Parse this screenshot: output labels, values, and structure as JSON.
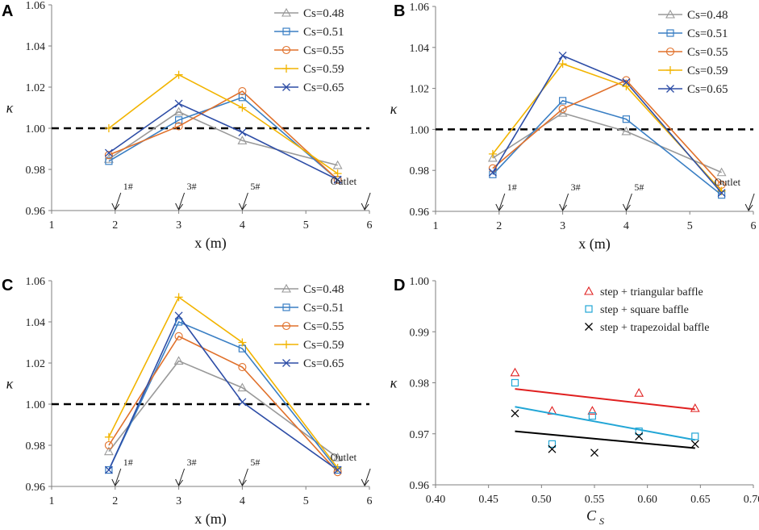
{
  "chart_data": [
    {
      "panel": "A",
      "type": "line",
      "xlabel": "x (m)",
      "ylabel": "κ",
      "xlim": [
        1,
        6
      ],
      "ylim": [
        0.96,
        1.06
      ],
      "xticks": [
        "1",
        "2",
        "3",
        "4",
        "5",
        "6"
      ],
      "yticks": [
        "0.96",
        "0.98",
        "1.00",
        "1.02",
        "1.04",
        "1.06"
      ],
      "reference_line": 1.0,
      "legend_position": "top-right",
      "x": [
        1.9,
        3.0,
        4.0,
        5.5
      ],
      "series": [
        {
          "name": "Cs=0.48",
          "marker": "triangle",
          "color": "#999999",
          "values": [
            0.985,
            1.008,
            0.994,
            0.982
          ]
        },
        {
          "name": "Cs=0.51",
          "marker": "square",
          "color": "#3a7fc4",
          "values": [
            0.984,
            1.004,
            1.015,
            0.975
          ]
        },
        {
          "name": "Cs=0.55",
          "marker": "circle",
          "color": "#e0702a",
          "values": [
            0.987,
            1.001,
            1.018,
            0.975
          ]
        },
        {
          "name": "Cs=0.59",
          "marker": "plus",
          "color": "#f2b400",
          "values": [
            1.0,
            1.026,
            1.01,
            0.978
          ]
        },
        {
          "name": "Cs=0.65",
          "marker": "x",
          "color": "#2d4da6",
          "values": [
            0.988,
            1.012,
            0.998,
            0.975
          ]
        }
      ],
      "annotations": [
        {
          "text": "1#",
          "x": 2
        },
        {
          "text": "3#",
          "x": 3
        },
        {
          "text": "5#",
          "x": 4
        },
        {
          "text": "Outlet",
          "x": 5.9
        }
      ]
    },
    {
      "panel": "B",
      "type": "line",
      "xlabel": "x (m)",
      "ylabel": "κ",
      "xlim": [
        1,
        6
      ],
      "ylim": [
        0.96,
        1.06
      ],
      "xticks": [
        "1",
        "2",
        "3",
        "4",
        "5",
        "6"
      ],
      "yticks": [
        "0.96",
        "0.98",
        "1.00",
        "1.02",
        "1.04",
        "1.06"
      ],
      "reference_line": 1.0,
      "legend_position": "top-right",
      "x": [
        1.9,
        3.0,
        4.0,
        5.5
      ],
      "series": [
        {
          "name": "Cs=0.48",
          "marker": "triangle",
          "color": "#999999",
          "values": [
            0.986,
            1.008,
            0.999,
            0.979
          ]
        },
        {
          "name": "Cs=0.51",
          "marker": "square",
          "color": "#3a7fc4",
          "values": [
            0.978,
            1.014,
            1.005,
            0.968
          ]
        },
        {
          "name": "Cs=0.55",
          "marker": "circle",
          "color": "#e0702a",
          "values": [
            0.981,
            1.01,
            1.024,
            0.973
          ]
        },
        {
          "name": "Cs=0.59",
          "marker": "plus",
          "color": "#f2b400",
          "values": [
            0.988,
            1.032,
            1.021,
            0.97
          ]
        },
        {
          "name": "Cs=0.65",
          "marker": "x",
          "color": "#2d4da6",
          "values": [
            0.979,
            1.036,
            1.023,
            0.969
          ]
        }
      ],
      "annotations": [
        {
          "text": "1#",
          "x": 2
        },
        {
          "text": "3#",
          "x": 3
        },
        {
          "text": "5#",
          "x": 4
        },
        {
          "text": "Outlet",
          "x": 5.9
        }
      ]
    },
    {
      "panel": "C",
      "type": "line",
      "xlabel": "x (m)",
      "ylabel": "κ",
      "xlim": [
        1,
        6
      ],
      "ylim": [
        0.96,
        1.06
      ],
      "xticks": [
        "1",
        "2",
        "3",
        "4",
        "5",
        "6"
      ],
      "yticks": [
        "0.96",
        "0.98",
        "1.00",
        "1.02",
        "1.04",
        "1.06"
      ],
      "reference_line": 1.0,
      "legend_position": "top-right",
      "x": [
        1.9,
        3.0,
        4.0,
        5.5
      ],
      "series": [
        {
          "name": "Cs=0.48",
          "marker": "triangle",
          "color": "#999999",
          "values": [
            0.977,
            1.021,
            1.008,
            0.974
          ]
        },
        {
          "name": "Cs=0.51",
          "marker": "square",
          "color": "#3a7fc4",
          "values": [
            0.968,
            1.04,
            1.027,
            0.968
          ]
        },
        {
          "name": "Cs=0.55",
          "marker": "circle",
          "color": "#e0702a",
          "values": [
            0.98,
            1.033,
            1.018,
            0.967
          ]
        },
        {
          "name": "Cs=0.59",
          "marker": "plus",
          "color": "#f2b400",
          "values": [
            0.984,
            1.052,
            1.03,
            0.969
          ]
        },
        {
          "name": "Cs=0.65",
          "marker": "x",
          "color": "#2d4da6",
          "values": [
            0.968,
            1.043,
            1.001,
            0.968
          ]
        }
      ],
      "annotations": [
        {
          "text": "1#",
          "x": 2
        },
        {
          "text": "3#",
          "x": 3
        },
        {
          "text": "5#",
          "x": 4
        },
        {
          "text": "Outlet",
          "x": 5.9
        }
      ]
    },
    {
      "panel": "D",
      "type": "scatter",
      "xlabel": "CS",
      "xlabel_main": "C",
      "xlabel_sub": "S",
      "ylabel": "κ",
      "xlim": [
        0.4,
        0.7
      ],
      "ylim": [
        0.96,
        1.0
      ],
      "xticks": [
        "0.40",
        "0.45",
        "0.50",
        "0.55",
        "0.60",
        "0.65",
        "0.70"
      ],
      "yticks": [
        "0.96",
        "0.97",
        "0.98",
        "0.99",
        "1.00"
      ],
      "legend_position": "top-right",
      "series": [
        {
          "name": "step + triangular baffle",
          "marker": "triangle",
          "color": "#e02020",
          "x": [
            0.475,
            0.51,
            0.548,
            0.592,
            0.645
          ],
          "values": [
            0.982,
            0.9745,
            0.9745,
            0.978,
            0.975
          ],
          "fit": {
            "x": [
              0.475,
              0.645
            ],
            "y": [
              0.9788,
              0.9748
            ]
          }
        },
        {
          "name": "step + square baffle",
          "marker": "square",
          "color": "#22a6d6",
          "x": [
            0.475,
            0.51,
            0.548,
            0.592,
            0.645
          ],
          "values": [
            0.98,
            0.968,
            0.9735,
            0.9705,
            0.9695
          ],
          "fit": {
            "x": [
              0.475,
              0.645
            ],
            "y": [
              0.9753,
              0.9688
            ]
          }
        },
        {
          "name": "step + trapezoidal baffle",
          "marker": "x",
          "color": "#000000",
          "x": [
            0.475,
            0.51,
            0.55,
            0.592,
            0.645
          ],
          "values": [
            0.974,
            0.967,
            0.9663,
            0.9695,
            0.968
          ],
          "fit": {
            "x": [
              0.475,
              0.645
            ],
            "y": [
              0.9705,
              0.9672
            ]
          }
        }
      ]
    }
  ]
}
